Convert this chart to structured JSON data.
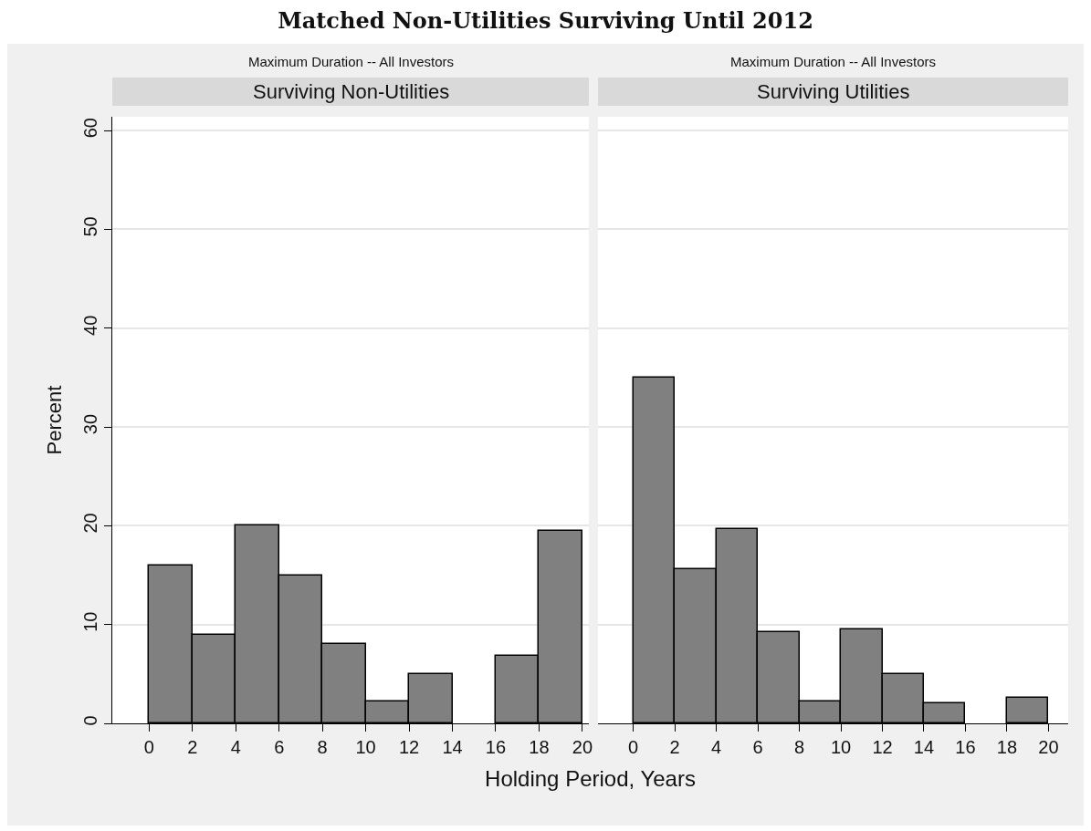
{
  "chart_data": [
    {
      "type": "histogram",
      "title": "Maximum Duration -- All Investors",
      "subtitle": "Surviving Non-Utilities",
      "ylabel": "Percent",
      "xlabel": "Holding Period, Years",
      "annotations": [
        "Matched Non-Utilities Surviving Until 2012"
      ],
      "bins": [
        0,
        2,
        4,
        6,
        8,
        10,
        12,
        14,
        16,
        18,
        20
      ],
      "values": [
        16,
        9,
        20,
        15,
        8,
        2.2,
        5,
        0,
        6.8,
        19.5
      ],
      "color": "#808080",
      "xlim": [
        -1.7,
        20.3
      ],
      "xticks": [
        0,
        2,
        4,
        6,
        8,
        10,
        12,
        14,
        16,
        18,
        20
      ],
      "ylim": [
        0,
        61.4
      ],
      "yticks": [
        0,
        10,
        20,
        30,
        40,
        50,
        60
      ],
      "grid": "y",
      "legend": false
    },
    {
      "type": "histogram",
      "title": "Maximum Duration -- All Investors",
      "subtitle": "Surviving Utilities",
      "bins": [
        0,
        2,
        4,
        6,
        8,
        10,
        12,
        14,
        16,
        18,
        20
      ],
      "values": [
        35,
        15.6,
        19.7,
        9.2,
        2.2,
        9.5,
        5,
        2,
        0,
        2.6
      ],
      "color": "#808080",
      "xlim": [
        -1.7,
        20.95
      ],
      "xticks": [
        0,
        2,
        4,
        6,
        8,
        10,
        12,
        14,
        16,
        18,
        20
      ],
      "ylim": [
        0,
        61.4
      ],
      "yticks": [
        0,
        10,
        20,
        30,
        40,
        50,
        60
      ],
      "grid": "y",
      "legend": false,
      "tick_labels": "x"
    }
  ]
}
